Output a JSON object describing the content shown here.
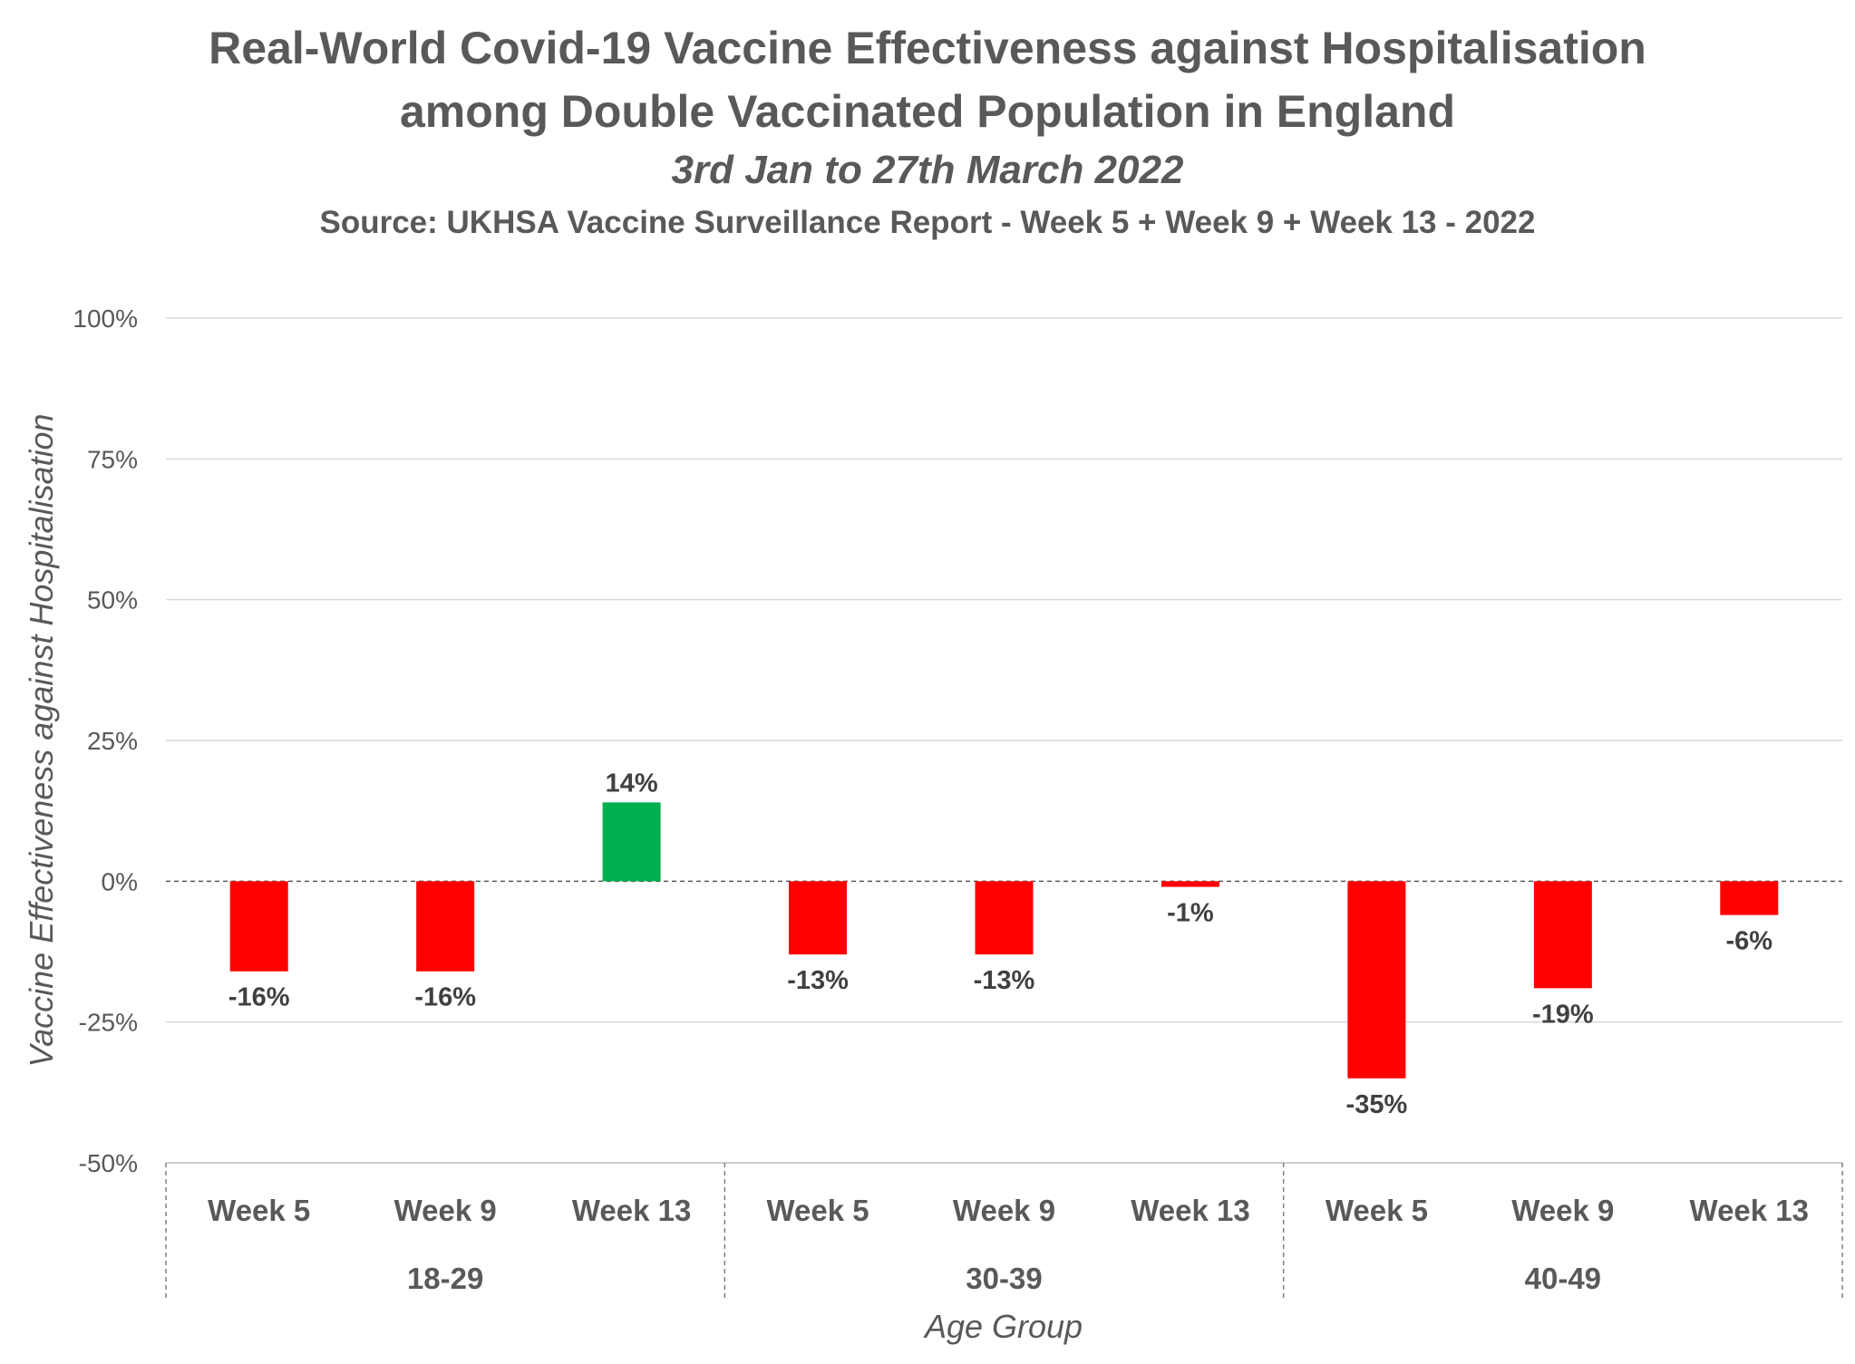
{
  "chart_data": {
    "type": "bar",
    "title": "Real-World Covid-19 Vaccine Effectiveness against Hospitalisation",
    "title_line2": "among Double Vaccinated Population in England",
    "subtitle": "3rd Jan to 27th March 2022",
    "source": "Source: UKHSA Vaccine Surveillance Report - Week 5 + Week 9 + Week 13 - 2022",
    "ylabel": "Vaccine Effectiveness against Hospitalisation",
    "xlabel": "Age Group",
    "ylim": [
      -50,
      100
    ],
    "yticks": [
      100,
      75,
      50,
      25,
      0,
      -25,
      -50
    ],
    "ytick_labels": [
      "100%",
      "75%",
      "50%",
      "25%",
      "0%",
      "-25%",
      "-50%"
    ],
    "grid": true,
    "groups": [
      {
        "name": "18-29",
        "categories": [
          "Week 5",
          "Week 9",
          "Week 13"
        ],
        "values": [
          -16,
          -16,
          14
        ],
        "labels": [
          "-16%",
          "-16%",
          "14%"
        ]
      },
      {
        "name": "30-39",
        "categories": [
          "Week 5",
          "Week 9",
          "Week 13"
        ],
        "values": [
          -13,
          -13,
          -1
        ],
        "labels": [
          "-13%",
          "-13%",
          "-1%"
        ]
      },
      {
        "name": "40-49",
        "categories": [
          "Week 5",
          "Week 9",
          "Week 13"
        ],
        "values": [
          -35,
          -19,
          -6
        ],
        "labels": [
          "-35%",
          "-19%",
          "-6%"
        ]
      }
    ],
    "colors": {
      "positive": "#00b050",
      "negative": "#ff0000"
    }
  }
}
